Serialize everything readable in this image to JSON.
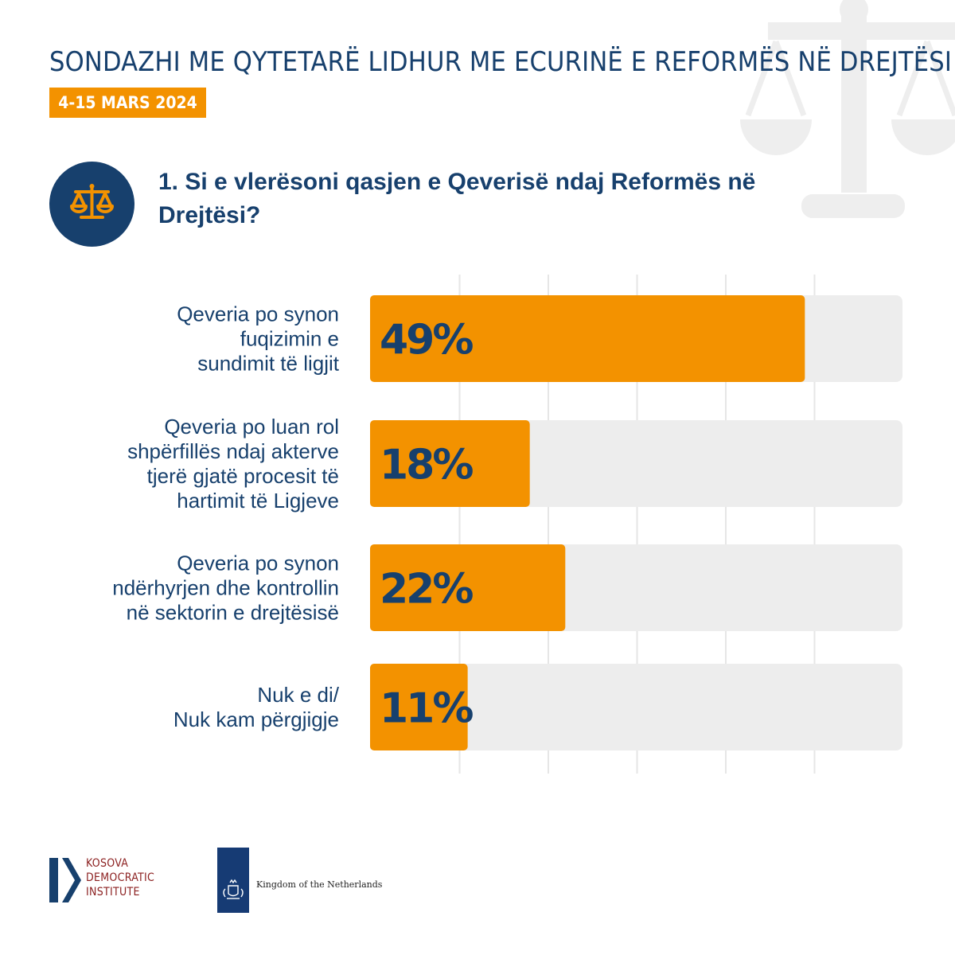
{
  "header": {
    "title": "SONDAZHI ME QYTETARË LIDHUR ME ECURINË E REFORMËS NË DREJTËSI",
    "date": "4-15 MARS 2024"
  },
  "question": {
    "text": "1. Si e vlerësoni qasjen e Qeverisë ndaj Reformës në Drejtësi?"
  },
  "chart_data": {
    "type": "bar",
    "orientation": "horizontal",
    "title": "1. Si e vlerësoni qasjen e Qeverisë ndaj Reformës në Drejtësi?",
    "categories": [
      [
        "Qeveria po synon",
        "fuqizimin e",
        "sundimit të ligjit"
      ],
      [
        "Qeveria po luan rol",
        "shpërfillës ndaj akterve",
        "tjerë gjatë procesit të",
        "hartimit të Ligjeve"
      ],
      [
        "Qeveria po synon",
        "ndërhyrjen dhe kontrollin",
        "në sektorin e drejtësisë"
      ],
      [
        "Nuk e di/",
        "Nuk kam përgjigje"
      ]
    ],
    "values": [
      49,
      18,
      22,
      11
    ],
    "value_labels": [
      "49%",
      "18%",
      "22%",
      "11%"
    ],
    "unit": "%",
    "xlim": [
      0,
      60
    ],
    "gridlines": [
      10,
      20,
      30,
      40,
      50
    ],
    "bar_color": "#f39200",
    "track_color": "#ededed",
    "text_color": "#17406d"
  },
  "footer": {
    "kdi_lines": [
      "KOSOVA",
      "DEMOCRATIC",
      "INSTITUTE"
    ],
    "netherlands": "Kingdom of the Netherlands"
  },
  "colors": {
    "navy": "#17406d",
    "orange": "#f39200",
    "maroon": "#8b1f1f"
  }
}
